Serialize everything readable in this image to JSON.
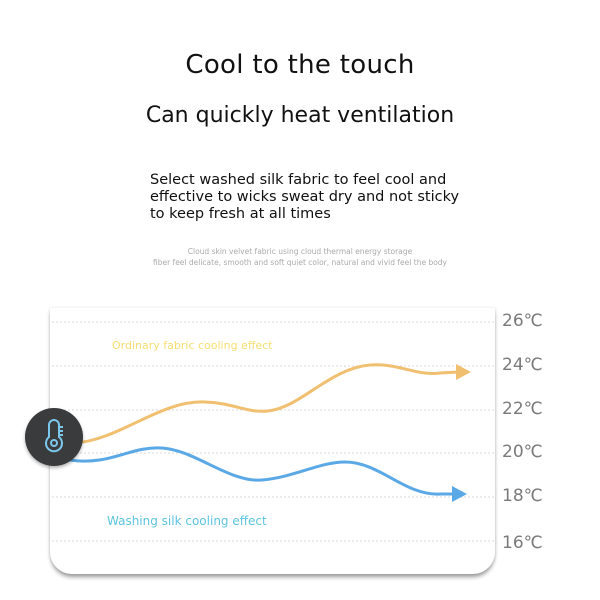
{
  "header": {
    "title": "Cool to the touch",
    "subtitle": "Can quickly heat ventilation",
    "description": "Select washed silk fabric to feel cool and effective to wicks sweat dry and not sticky to keep fresh at all times",
    "small_text_line1": "Cloud skin velvet fabric using cloud thermal energy storage",
    "small_text_line2": "fiber feel delicate, smooth and soft quiet color, natural and vivid feel the body"
  },
  "graphic": {
    "y_labels": [
      "26℃",
      "24℃",
      "22℃",
      "20℃",
      "18℃",
      "16℃"
    ],
    "ordinary_label": "Ordinary fabric cooling effect",
    "silk_label": "Washing silk cooling effect",
    "ordinary_color": "#f0c070",
    "silk_color": "#5aa8e6",
    "icon": "thermometer-icon"
  }
}
